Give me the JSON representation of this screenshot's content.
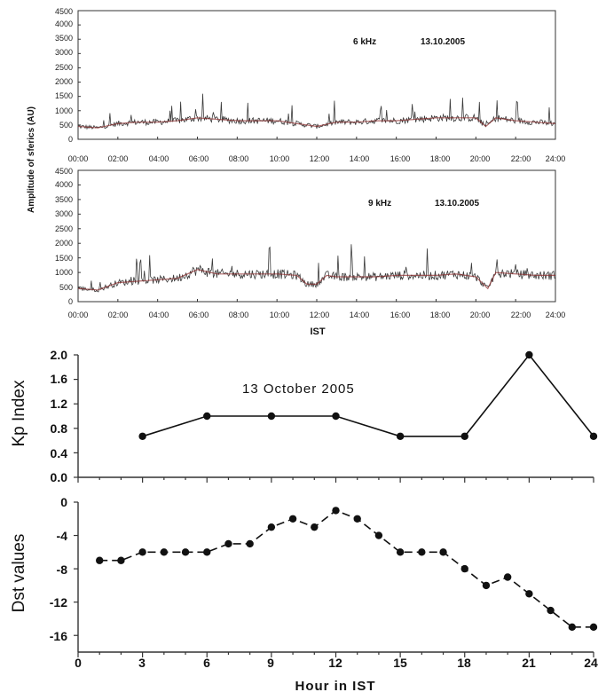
{
  "colors": {
    "axis": "#333333",
    "trace": "#3a3a3a",
    "trace_smooth": "#8b2a2a",
    "marker": "#111111"
  },
  "chart_data": [
    {
      "id": "sferics-6khz",
      "type": "line",
      "xlabel": "",
      "ylabel": "Amplitude of sferics (AU)",
      "annotation_freq": "6 kHz",
      "annotation_date": "13.10.2005",
      "ylim": [
        0,
        4500
      ],
      "yticks": [
        "0",
        "500",
        "1000",
        "1500",
        "2000",
        "2500",
        "3000",
        "3500",
        "4000",
        "4500"
      ],
      "xticks": [
        "00:00",
        "02:00",
        "04:00",
        "06:00",
        "08:00",
        "10:00",
        "12:00",
        "14:00",
        "16:00",
        "18:00",
        "20:00",
        "22:00",
        "24:00"
      ],
      "x_hours": [
        0,
        1,
        2,
        3,
        4,
        5,
        6,
        7,
        8,
        9,
        10,
        11,
        12,
        13,
        14,
        15,
        16,
        17,
        18,
        19,
        20,
        20.5,
        21,
        22,
        23,
        24
      ],
      "values": [
        450,
        400,
        550,
        600,
        600,
        650,
        750,
        700,
        650,
        650,
        650,
        550,
        450,
        600,
        600,
        650,
        650,
        700,
        750,
        750,
        750,
        450,
        750,
        650,
        600,
        550
      ]
    },
    {
      "id": "sferics-9khz",
      "type": "line",
      "xlabel": "IST",
      "ylabel": "",
      "annotation_freq": "9 kHz",
      "annotation_date": "13.10.2005",
      "ylim": [
        0,
        4500
      ],
      "yticks": [
        "0",
        "500",
        "1000",
        "1500",
        "2000",
        "2500",
        "3000",
        "3500",
        "4000",
        "4500"
      ],
      "xticks": [
        "00:00",
        "02:00",
        "04:00",
        "06:00",
        "08:00",
        "10:00",
        "12:00",
        "14:00",
        "16:00",
        "18:00",
        "20:00",
        "22:00",
        "24:00"
      ],
      "x_hours": [
        0,
        1,
        2,
        3,
        4,
        5,
        6,
        7,
        8,
        9,
        10,
        11,
        11.5,
        12,
        12.5,
        13,
        14,
        15,
        16,
        17,
        18,
        19,
        20,
        20.6,
        21,
        22,
        23,
        24
      ],
      "values": [
        450,
        400,
        650,
        700,
        750,
        800,
        1100,
        950,
        950,
        950,
        950,
        900,
        600,
        600,
        900,
        850,
        850,
        850,
        900,
        900,
        900,
        950,
        850,
        450,
        1000,
        950,
        900,
        900
      ]
    },
    {
      "id": "kp-index",
      "type": "line",
      "xlabel": "",
      "ylabel": "Kp Index",
      "annotation": "13 October 2005",
      "ylim": [
        0,
        2.0
      ],
      "yticks": [
        "0.0",
        "0.4",
        "0.8",
        "1.2",
        "1.6",
        "2.0"
      ],
      "x": [
        3,
        6,
        9,
        12,
        15,
        18,
        21,
        24
      ],
      "values": [
        0.67,
        1.0,
        1.0,
        1.0,
        0.67,
        0.67,
        2.0,
        0.67
      ]
    },
    {
      "id": "dst-values",
      "type": "line",
      "xlabel": "Hour in IST",
      "ylabel": "Dst values",
      "ylim": [
        -18,
        0
      ],
      "yticks": [
        "0",
        "-4",
        "-8",
        "-12",
        "-16"
      ],
      "xticks": [
        "0",
        "3",
        "6",
        "9",
        "12",
        "15",
        "18",
        "21",
        "24"
      ],
      "x": [
        1,
        2,
        3,
        4,
        5,
        6,
        7,
        8,
        9,
        10,
        11,
        12,
        13,
        14,
        15,
        16,
        17,
        18,
        19,
        20,
        21,
        22,
        23,
        24
      ],
      "values": [
        -7,
        -7,
        -6,
        -6,
        -6,
        -6,
        -5,
        -5,
        -3,
        -2,
        -3,
        -1,
        -2,
        -4,
        -6,
        -6,
        -6,
        -8,
        -10,
        -9,
        -11,
        -13,
        -15,
        -15
      ]
    }
  ]
}
